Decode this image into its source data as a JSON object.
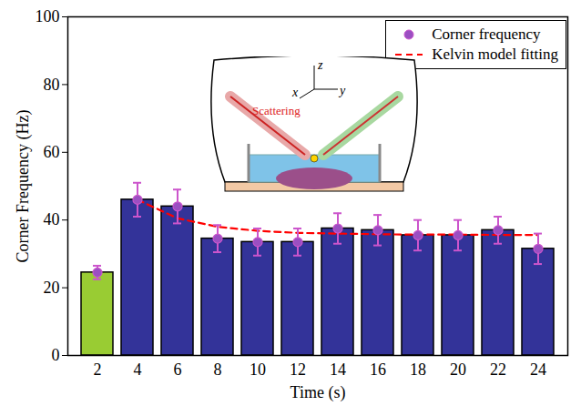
{
  "chart_data": {
    "type": "bar",
    "x_label": "Time (s)",
    "y_label": "Corner Frequency (Hz)",
    "categories": [
      "2",
      "4",
      "6",
      "8",
      "10",
      "12",
      "14",
      "16",
      "18",
      "20",
      "22",
      "24"
    ],
    "colors": [
      "#99cc33",
      "#333399",
      "#333399",
      "#333399",
      "#333399",
      "#333399",
      "#333399",
      "#333399",
      "#333399",
      "#333399",
      "#333399",
      "#333399"
    ],
    "series": [
      {
        "name": "Corner frequency",
        "type": "scatter",
        "marker": "circle",
        "color": "#9b4fc2",
        "values": [
          24.5,
          46,
          44,
          34.5,
          33.5,
          33.5,
          37.5,
          37,
          35.5,
          35.5,
          37,
          31.5
        ],
        "errors": [
          2,
          5,
          5,
          4,
          4,
          4,
          4.5,
          4.5,
          4.5,
          4.5,
          4,
          4.5
        ]
      },
      {
        "name": "Kelvin model fitting",
        "type": "line",
        "line_style": "dashed",
        "color": "#ff0000",
        "values": [
          null,
          46,
          40.5,
          38,
          36.8,
          36.2,
          36,
          35.8,
          35.7,
          35.7,
          35.6,
          35.6
        ]
      }
    ],
    "ylim": [
      0,
      100
    ],
    "yticks": [
      0,
      20,
      40,
      60,
      80,
      100
    ],
    "legend": "upper right",
    "annotations": [
      "Scattering",
      "x",
      "y",
      "z"
    ]
  }
}
